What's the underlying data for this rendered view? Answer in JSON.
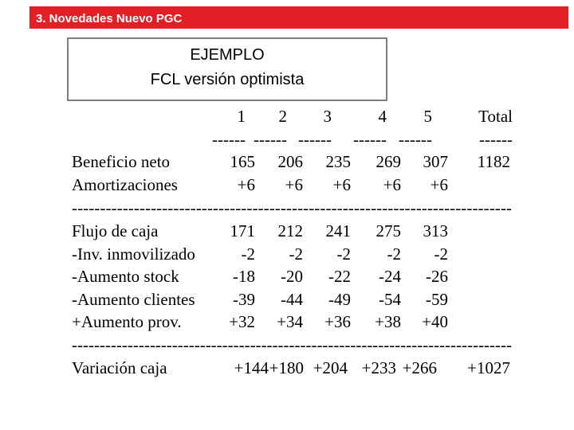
{
  "header": {
    "title": "3. Novedades Nuevo PGC"
  },
  "box": {
    "line1": "EJEMPLO",
    "line2": "FCL versión optimista"
  },
  "table": {
    "rows": [
      {
        "cells": [
          "1",
          "2",
          "3",
          "4",
          "5",
          "Total"
        ]
      },
      {
        "cells": [
          "------",
          "------",
          "------",
          "------",
          "------",
          "------"
        ]
      },
      {
        "label": "Beneficio neto",
        "cells": [
          "165",
          "206",
          "235",
          "269",
          "307",
          "1182"
        ]
      },
      {
        "label": "Amortizaciones",
        "cells": [
          "+6",
          "+6",
          "+6",
          "+6",
          "+6"
        ]
      },
      {
        "rule": "------------------------------------------------------------------------------"
      },
      {
        "label": "Flujo de caja",
        "cells": [
          "171",
          "212",
          "241",
          "275",
          "313"
        ]
      },
      {
        "label": "-Inv. inmovilizado",
        "cells": [
          "-2",
          "-2",
          "-2",
          "-2",
          "-2"
        ]
      },
      {
        "label": "-Aumento stock",
        "cells": [
          "-18",
          "-20",
          "-22",
          "-24",
          "-26"
        ]
      },
      {
        "label": "-Aumento clientes",
        "cells": [
          "-39",
          "-44",
          "-49",
          "-54",
          "-59"
        ]
      },
      {
        "label": "+Aumento prov.",
        "cells": [
          "+32",
          "+34",
          "+36",
          "+38",
          "+40"
        ]
      },
      {
        "rule": "-------------------------------------------------------------------------------"
      },
      {
        "label": "Variación caja",
        "cells": [
          "+144",
          "+180",
          "+204",
          "+233",
          "+266",
          "+1027"
        ]
      }
    ]
  }
}
